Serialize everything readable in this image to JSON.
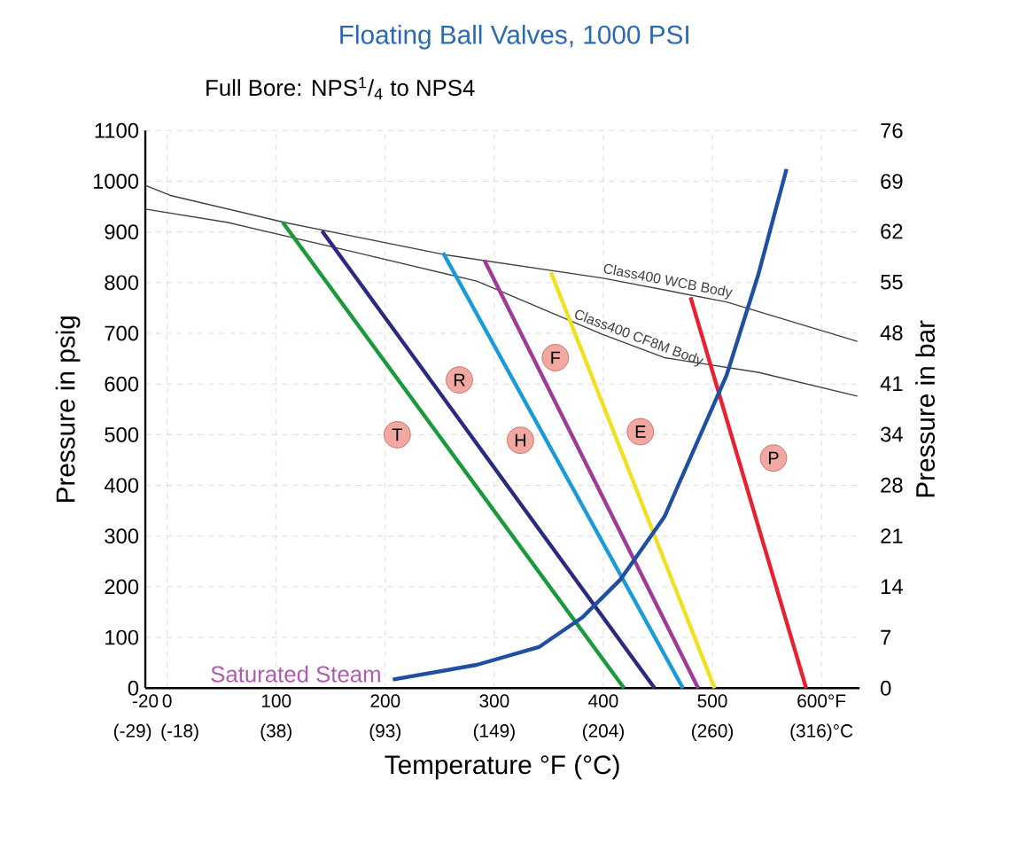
{
  "chart_data": {
    "type": "line",
    "title": "Floating Ball Valves, 1000 PSI",
    "subtitle": "Full Bore: NPS$^{1}$/$_{4}$ to NPS4",
    "xlabel": "Temperature °F (°C)",
    "ylabel": "Pressure in psig",
    "y2label": "Pressure in bar",
    "xlim": [
      -20,
      635
    ],
    "ylim": [
      0,
      1100
    ],
    "y2lim": [
      0,
      75.8
    ],
    "xticks": [
      -20,
      0,
      100,
      200,
      300,
      400,
      500,
      {
        "value": 600,
        "label": "600°F"
      }
    ],
    "yticks": [
      0,
      100,
      200,
      300,
      400,
      500,
      600,
      700,
      800,
      900,
      1000,
      1100
    ],
    "y2ticks": [
      0,
      {
        "value": 6.9,
        "label": "7"
      },
      {
        "value": 13.8,
        "label": "14"
      },
      {
        "value": 20.7,
        "label": "21"
      },
      {
        "value": 27.6,
        "label": "28"
      },
      {
        "value": 34.5,
        "label": "34"
      },
      {
        "value": 41.4,
        "label": "41"
      },
      {
        "value": 48.3,
        "label": "48"
      },
      {
        "value": 55.2,
        "label": "55"
      },
      {
        "value": 62.1,
        "label": "62"
      },
      {
        "value": 68.9,
        "label": "69"
      },
      {
        "value": 75.8,
        "label": "76"
      }
    ],
    "grid": true,
    "series": [
      {
        "name": "Class400 WCB Body",
        "color": "#404040",
        "x": [
          -20,
          3,
          107,
          255,
          399,
          513,
          633
        ],
        "values": [
          992,
          972,
          919,
          855,
          809,
          762,
          684
        ]
      },
      {
        "name": "Class400 CF8M Body",
        "color": "#404040",
        "x": [
          -20,
          55,
          170,
          284,
          399,
          456,
          542,
          633
        ],
        "values": [
          945,
          919,
          861,
          803,
          698,
          652,
          623,
          576
        ]
      },
      {
        "color": "#1a9a3a",
        "x": [
          106,
          419
        ],
        "values": [
          919,
          0
        ]
      },
      {
        "color": "#2a2a80",
        "x": [
          142,
          447
        ],
        "values": [
          902,
          0
        ]
      },
      {
        "color": "#1a9ad8",
        "x": [
          253,
          473
        ],
        "values": [
          859,
          0
        ]
      },
      {
        "color": "#a03a98",
        "x": [
          291,
          487
        ],
        "values": [
          844,
          0
        ]
      },
      {
        "color": "#f0e020",
        "x": [
          352,
          502
        ],
        "values": [
          820,
          0
        ]
      },
      {
        "color": "#e82030",
        "x": [
          480,
          586
        ],
        "values": [
          771,
          0
        ]
      },
      {
        "name": "Saturated Steam",
        "color": "#1f4fa0",
        "x": [
          207,
          284,
          341,
          381,
          416,
          456,
          513,
          542,
          568
        ],
        "values": [
          17,
          46,
          81,
          140,
          215,
          338,
          617,
          815,
          1024
        ]
      }
    ],
    "annotations": [
      {
        "text": "T",
        "x": 211,
        "y": 500
      },
      {
        "text": "R",
        "x": 268,
        "y": 608
      },
      {
        "text": "H",
        "x": 324,
        "y": 489
      },
      {
        "text": "F",
        "x": 356,
        "y": 652
      },
      {
        "text": "E",
        "x": 434,
        "y": 506
      },
      {
        "text": "P",
        "x": 556,
        "y": 454
      },
      "(-29)",
      "(-18)",
      "(38)",
      "(93)",
      "(149)",
      "(204)",
      "(260)",
      "(316)°C"
    ]
  }
}
